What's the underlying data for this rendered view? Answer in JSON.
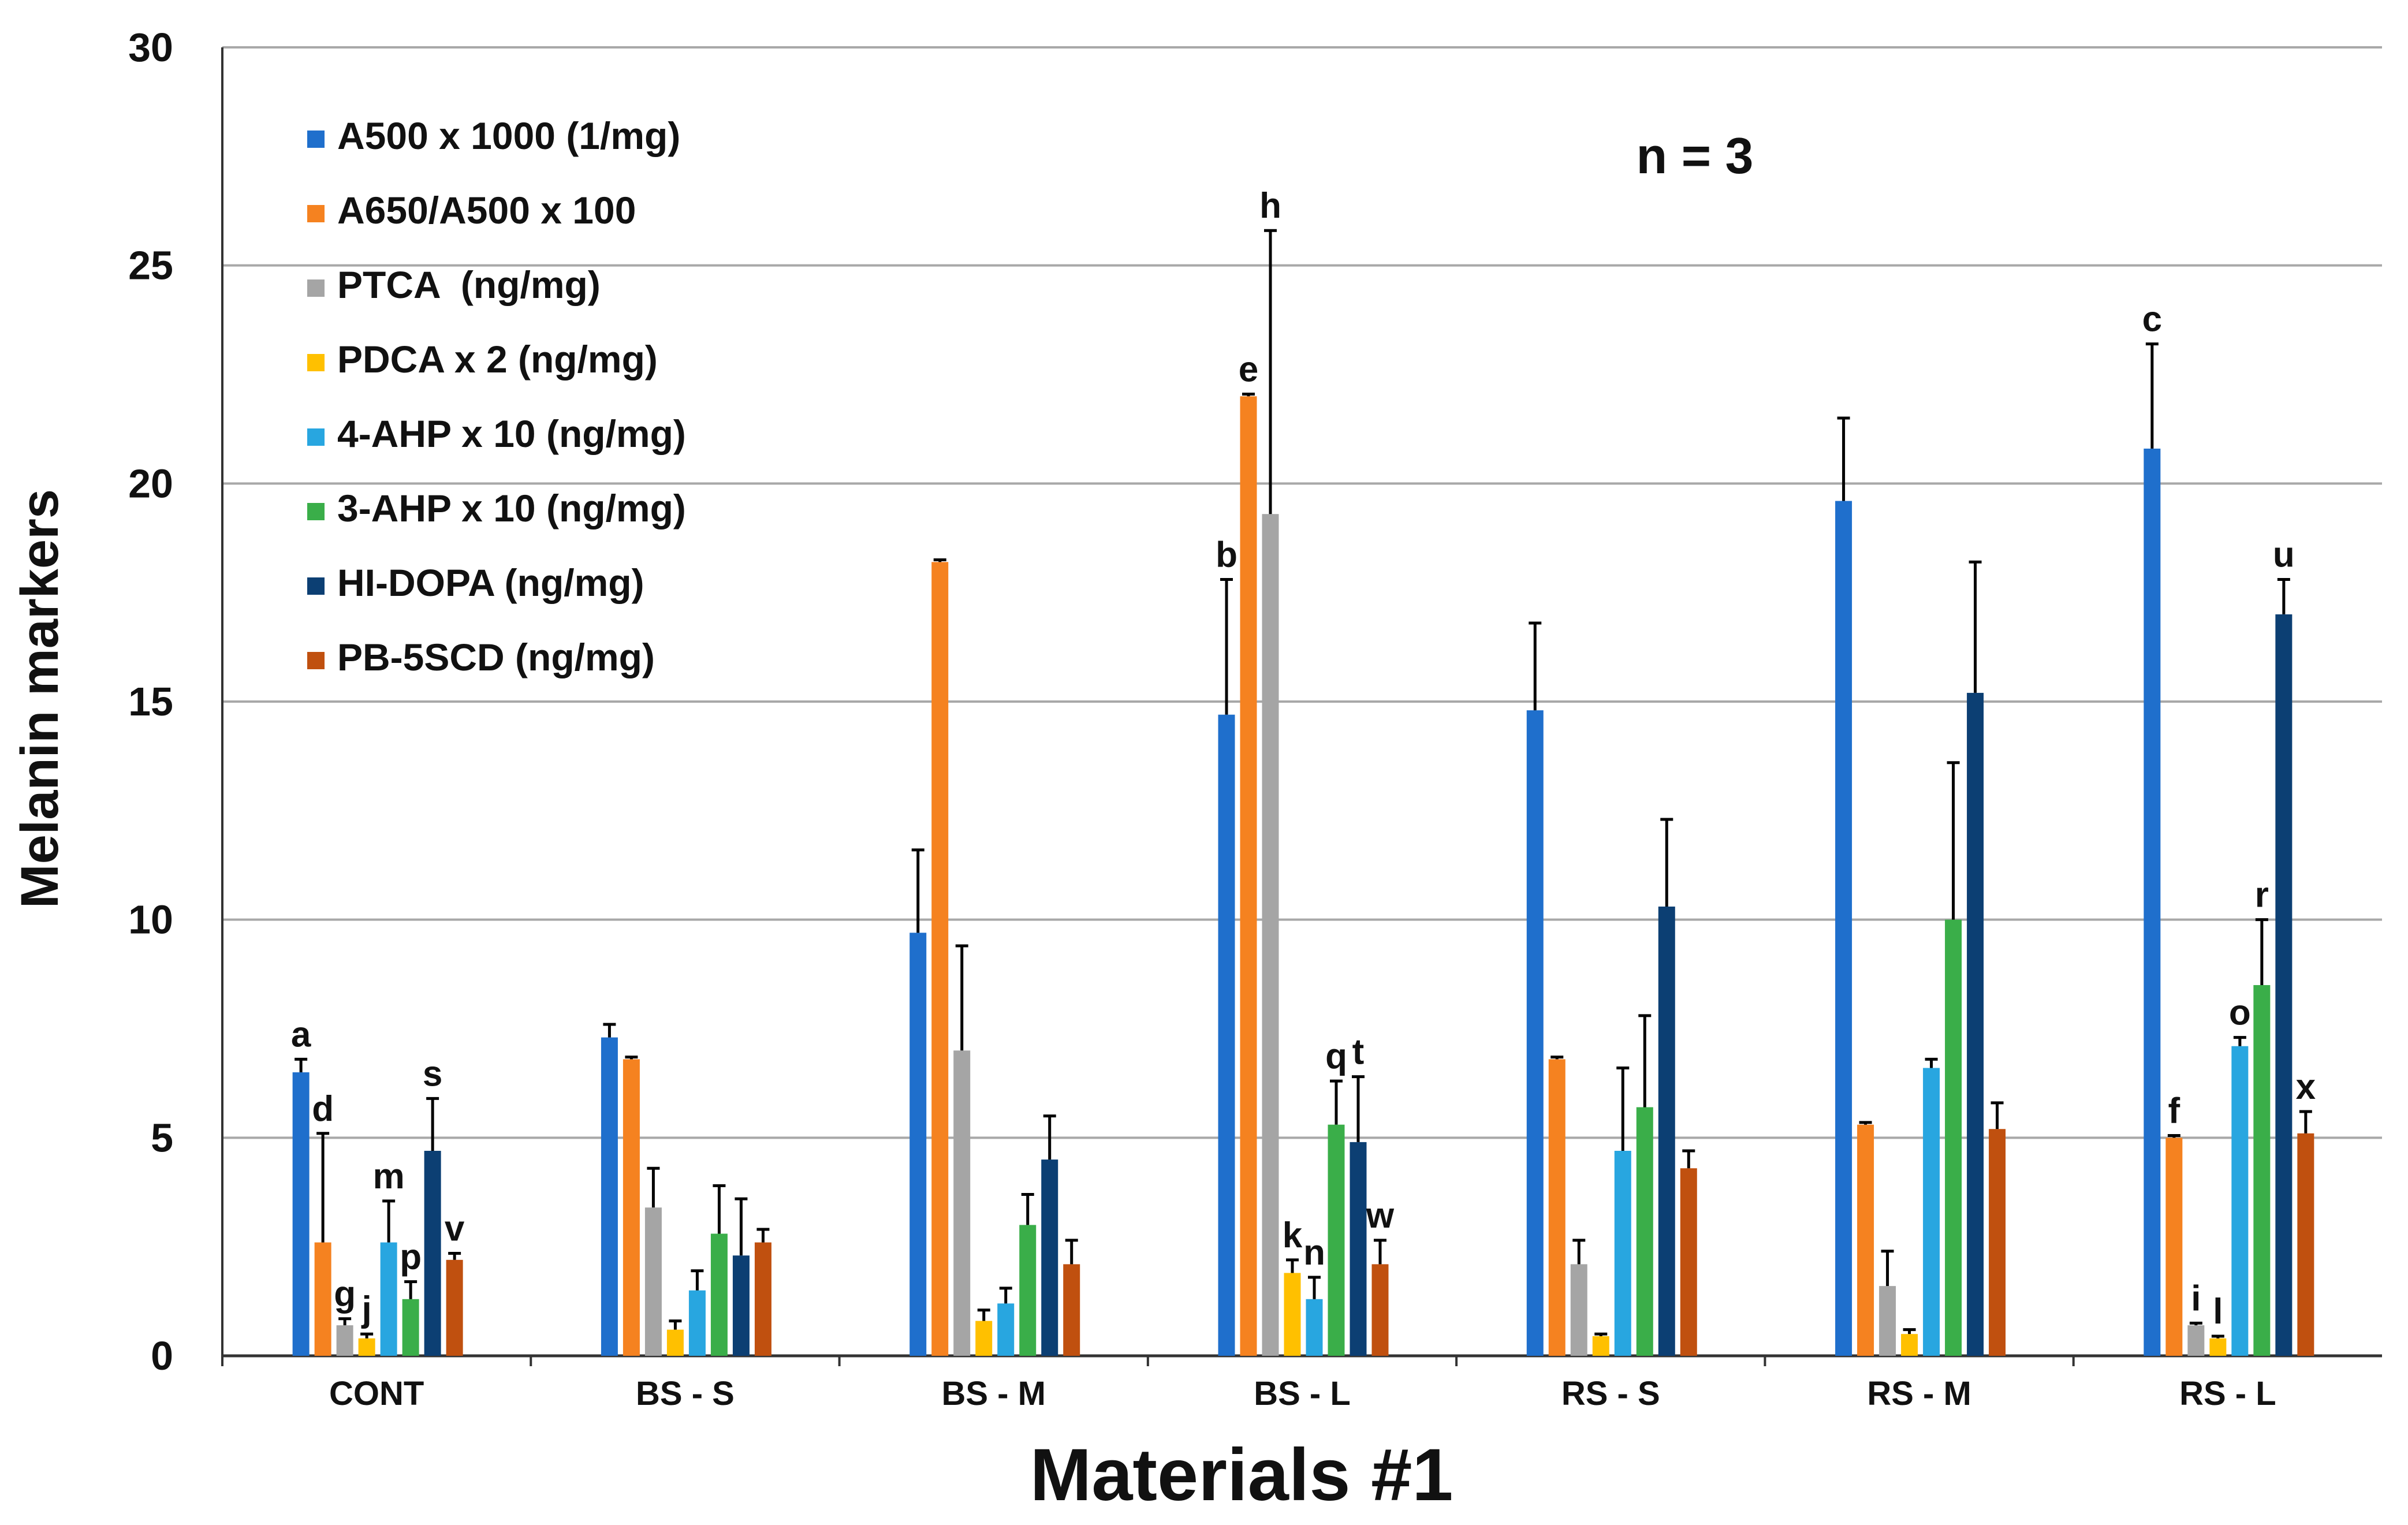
{
  "chart_data": {
    "type": "bar",
    "title": "",
    "xlabel": "Materials #1",
    "ylabel": "Melanin markers",
    "annotation": "n = 3",
    "ylim": [
      0,
      30
    ],
    "yticks": [
      "0",
      "5",
      "10",
      "15",
      "20",
      "25",
      "30"
    ],
    "grid": true,
    "legend_position": "top-left",
    "categories": [
      "CONT",
      "BS - S",
      "BS - M",
      "BS - L",
      "RS - S",
      "RS - M",
      "RS - L"
    ],
    "series": [
      {
        "name": "A500 x 1000 (1/mg)",
        "color": "#1f6fcc",
        "values": [
          6.5,
          7.3,
          9.7,
          14.7,
          14.8,
          19.6,
          20.8
        ],
        "errors": [
          0.3,
          0.3,
          1.9,
          3.1,
          2.0,
          1.9,
          2.4
        ],
        "labels": [
          "a",
          "",
          "",
          "b",
          "",
          "",
          "c"
        ]
      },
      {
        "name": "A650/A500 x 100",
        "color": "#f58220",
        "values": [
          2.6,
          6.8,
          18.2,
          22.0,
          6.8,
          5.3,
          5.0
        ],
        "errors": [
          2.5,
          0.05,
          0.05,
          0.05,
          0.05,
          0.05,
          0.05
        ],
        "labels": [
          "d",
          "",
          "",
          "e",
          "",
          "",
          "f"
        ]
      },
      {
        "name": "PTCA  (ng/mg)",
        "color": "#a5a5a5",
        "values": [
          0.7,
          3.4,
          7.0,
          19.3,
          2.1,
          1.6,
          0.7
        ],
        "errors": [
          0.15,
          0.9,
          2.4,
          6.5,
          0.55,
          0.8,
          0.05
        ],
        "labels": [
          "g",
          "",
          "",
          "h",
          "",
          "",
          "i"
        ]
      },
      {
        "name": "PDCA x 2 (ng/mg)",
        "color": "#ffc000",
        "values": [
          0.4,
          0.6,
          0.8,
          1.9,
          0.45,
          0.5,
          0.4
        ],
        "errors": [
          0.1,
          0.2,
          0.25,
          0.3,
          0.05,
          0.1,
          0.05
        ],
        "labels": [
          "j",
          "",
          "",
          "k",
          "",
          "",
          "l"
        ]
      },
      {
        "name": "4-AHP x 10 (ng/mg)",
        "color": "#28a6e0",
        "values": [
          2.6,
          1.5,
          1.2,
          1.3,
          4.7,
          6.6,
          7.1
        ],
        "errors": [
          0.95,
          0.45,
          0.35,
          0.5,
          1.9,
          0.2,
          0.2
        ],
        "labels": [
          "m",
          "",
          "",
          "n",
          "",
          "",
          "o"
        ]
      },
      {
        "name": "3-AHP x 10 (ng/mg)",
        "color": "#3aae49",
        "values": [
          1.3,
          2.8,
          3.0,
          5.3,
          5.7,
          10.0,
          8.5
        ],
        "errors": [
          0.4,
          1.1,
          0.7,
          1.0,
          2.1,
          3.6,
          1.5
        ],
        "labels": [
          "p",
          "",
          "",
          "q",
          "",
          "",
          "r"
        ]
      },
      {
        "name": "HI-DOPA (ng/mg)",
        "color": "#0c3f73",
        "values": [
          4.7,
          2.3,
          4.5,
          4.9,
          10.3,
          15.2,
          17.0
        ],
        "errors": [
          1.2,
          1.3,
          1.0,
          1.5,
          2.0,
          3.0,
          0.8
        ],
        "labels": [
          "s",
          "",
          "",
          "t",
          "",
          "",
          "u"
        ]
      },
      {
        "name": "PB-5SCD (ng/mg)",
        "color": "#c0500f",
        "values": [
          2.2,
          2.6,
          2.1,
          2.1,
          4.3,
          5.2,
          5.1
        ],
        "errors": [
          0.15,
          0.3,
          0.55,
          0.55,
          0.4,
          0.6,
          0.5
        ],
        "labels": [
          "v",
          "",
          "",
          "w",
          "",
          "",
          "x"
        ]
      }
    ]
  }
}
